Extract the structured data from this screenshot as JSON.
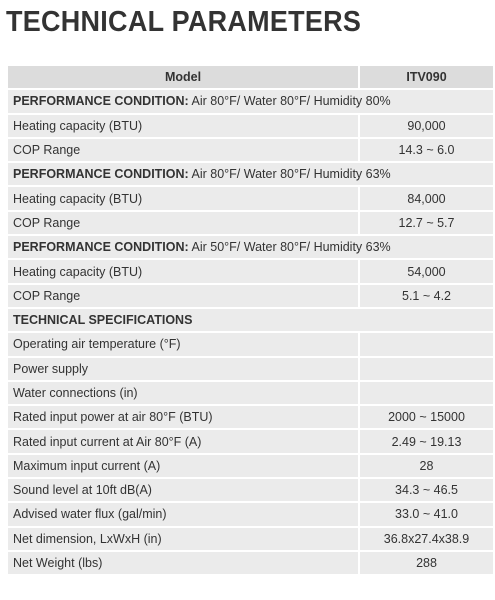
{
  "header": {
    "title": "TECHNICAL PARAMETERS"
  },
  "table": {
    "columns": [
      "Model",
      "ITV090"
    ],
    "rows": [
      {
        "section": {
          "label": "PERFORMANCE CONDITION:",
          "text": "Air 80°F/ Water 80°F/ Humidity 80%"
        }
      },
      {
        "cells": [
          "Heating capacity (BTU)",
          "90,000"
        ]
      },
      {
        "cells": [
          "COP Range",
          "14.3 ~ 6.0"
        ]
      },
      {
        "section": {
          "label": "PERFORMANCE CONDITION:",
          "text": "Air 80°F/ Water 80°F/ Humidity 63%"
        }
      },
      {
        "cells": [
          "Heating capacity (BTU)",
          "84,000"
        ]
      },
      {
        "cells": [
          "COP Range",
          "12.7 ~ 5.7"
        ]
      },
      {
        "section": {
          "label": "PERFORMANCE CONDITION:",
          "text": "Air 50°F/ Water 80°F/ Humidity 63%"
        }
      },
      {
        "cells": [
          "Heating capacity (BTU)",
          "54,000"
        ]
      },
      {
        "cells": [
          "COP Range",
          "5.1 ~ 4.2"
        ]
      },
      {
        "section": {
          "label": "TECHNICAL SPECIFICATIONS"
        }
      },
      {
        "cells": [
          "Operating air temperature (°F)"
        ]
      },
      {
        "cells": [
          "Power supply"
        ]
      },
      {
        "cells": [
          "Water connections (in)"
        ]
      },
      {
        "cells": [
          "Rated input power at air 80°F (BTU)",
          "2000 ~ 15000"
        ]
      },
      {
        "cells": [
          "Rated input current at Air 80°F (A)",
          "2.49 ~ 19.13"
        ]
      },
      {
        "cells": [
          "Maximum input current (A)",
          "28"
        ]
      },
      {
        "cells": [
          "Sound level at 10ft dB(A)",
          "34.3 ~ 46.5"
        ]
      },
      {
        "cells": [
          "Advised water flux (gal/min)",
          "33.0 ~ 41.0"
        ]
      },
      {
        "cells": [
          "Net dimension, LxWxH (in)",
          "36.8x27.4x38.9"
        ]
      },
      {
        "cells": [
          "Net Weight (lbs)",
          "288"
        ]
      }
    ]
  }
}
